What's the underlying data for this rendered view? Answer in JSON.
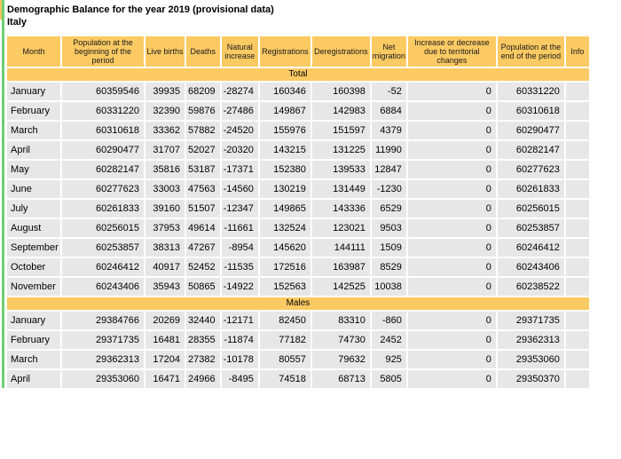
{
  "page": {
    "title": "Demographic Balance for the year 2019 (provisional data)",
    "subtitle": "Italy"
  },
  "colors": {
    "header_yellow": "#FBCA63",
    "row_gray": "#E7E7E7",
    "left_bar_green": "#6FCE74",
    "left_edge_accent": "#FBC15A"
  },
  "table": {
    "columns": [
      "Month",
      "Population at the beginning of the period",
      "Live births",
      "Deaths",
      "Natural increase",
      "Registrations",
      "Deregistrations",
      "Net migration",
      "Increase or decrease due to territorial changes",
      "Population at the end of the period",
      "Info"
    ],
    "sections": [
      {
        "label": "Total",
        "rows": [
          {
            "month": "January",
            "values": [
              60359546,
              39935,
              68209,
              -28274,
              160346,
              160398,
              -52,
              0,
              60331220
            ]
          },
          {
            "month": "February",
            "values": [
              60331220,
              32390,
              59876,
              -27486,
              149867,
              142983,
              6884,
              0,
              60310618
            ]
          },
          {
            "month": "March",
            "values": [
              60310618,
              33362,
              57882,
              -24520,
              155976,
              151597,
              4379,
              0,
              60290477
            ]
          },
          {
            "month": "April",
            "values": [
              60290477,
              31707,
              52027,
              -20320,
              143215,
              131225,
              11990,
              0,
              60282147
            ]
          },
          {
            "month": "May",
            "values": [
              60282147,
              35816,
              53187,
              -17371,
              152380,
              139533,
              12847,
              0,
              60277623
            ]
          },
          {
            "month": "June",
            "values": [
              60277623,
              33003,
              47563,
              -14560,
              130219,
              131449,
              -1230,
              0,
              60261833
            ]
          },
          {
            "month": "July",
            "values": [
              60261833,
              39160,
              51507,
              -12347,
              149865,
              143336,
              6529,
              0,
              60256015
            ]
          },
          {
            "month": "August",
            "values": [
              60256015,
              37953,
              49614,
              -11661,
              132524,
              123021,
              9503,
              0,
              60253857
            ]
          },
          {
            "month": "September",
            "values": [
              60253857,
              38313,
              47267,
              -8954,
              145620,
              144111,
              1509,
              0,
              60246412
            ]
          },
          {
            "month": "October",
            "values": [
              60246412,
              40917,
              52452,
              -11535,
              172516,
              163987,
              8529,
              0,
              60243406
            ]
          },
          {
            "month": "November",
            "values": [
              60243406,
              35943,
              50865,
              -14922,
              152563,
              142525,
              10038,
              0,
              60238522
            ]
          }
        ]
      },
      {
        "label": "Males",
        "rows": [
          {
            "month": "January",
            "values": [
              29384766,
              20269,
              32440,
              -12171,
              82450,
              83310,
              -860,
              0,
              29371735
            ]
          },
          {
            "month": "February",
            "values": [
              29371735,
              16481,
              28355,
              -11874,
              77182,
              74730,
              2452,
              0,
              29362313
            ]
          },
          {
            "month": "March",
            "values": [
              29362313,
              17204,
              27382,
              -10178,
              80557,
              79632,
              925,
              0,
              29353060
            ]
          },
          {
            "month": "April",
            "values": [
              29353060,
              16471,
              24966,
              -8495,
              74518,
              68713,
              5805,
              0,
              29350370
            ]
          }
        ]
      }
    ]
  }
}
